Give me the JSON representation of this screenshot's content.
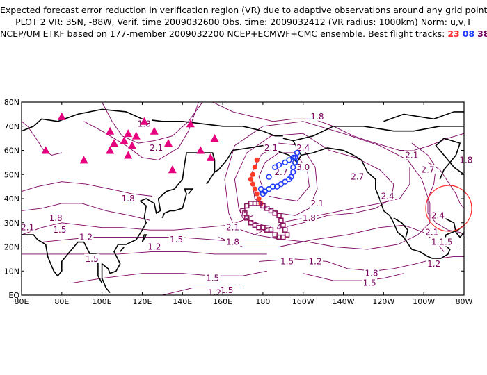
{
  "title": {
    "line1": "Expected forecast error reduction in verification region (VR) due to adaptive observations around any grid point.",
    "line2": "PLOT 2 VR: 35N, -88W, Verif. time 2009032600 Obs. time: 2009032412 (VR radius: 1000km) Norm: u,v,T",
    "line3_prefix": "NCEP/UM ETKF based on 177-member 2009032200 NCEP+ECMWF+CMC ensemble. Best flight tracks:",
    "track_a": "23",
    "track_b": "08",
    "track_c": "38"
  },
  "lat_labels": [
    "80N",
    "70N",
    "60N",
    "50N",
    "40N",
    "30N",
    "20N",
    "10N",
    "EQ"
  ],
  "lon_labels": [
    "80E",
    "80E",
    "100E",
    "120E",
    "140E",
    "160E",
    "180",
    "160W",
    "140W",
    "120W",
    "100W",
    "80W"
  ],
  "contour_labels": [
    {
      "text": "1.8",
      "lon": 28,
      "lat": 72
    },
    {
      "text": "1.8",
      "lon": 121,
      "lat": 71
    },
    {
      "text": "2.1",
      "lon": 127,
      "lat": 61
    },
    {
      "text": "1.8",
      "lon": 113,
      "lat": 40
    },
    {
      "text": "1.8",
      "lon": 77,
      "lat": 32
    },
    {
      "text": "2.1",
      "lon": 63,
      "lat": 28
    },
    {
      "text": "1.5",
      "lon": 79,
      "lat": 27
    },
    {
      "text": "1.2",
      "lon": 92,
      "lat": 24
    },
    {
      "text": "1.5",
      "lon": 95,
      "lat": 15
    },
    {
      "text": "1.5",
      "lon": 137,
      "lat": 23
    },
    {
      "text": "1.2",
      "lon": 126,
      "lat": 20
    },
    {
      "text": "1.5",
      "lon": 155,
      "lat": 7
    },
    {
      "text": "1.5",
      "lon": 162,
      "lat": 2
    },
    {
      "text": "1.2",
      "lon": 156,
      "lat": 1
    },
    {
      "text": "2.1",
      "lon": 165,
      "lat": 28
    },
    {
      "text": "1.8",
      "lon": 165,
      "lat": 22
    },
    {
      "text": "1.8",
      "lon": 207,
      "lat": 74
    },
    {
      "text": "2.1",
      "lon": 184,
      "lat": 61
    },
    {
      "text": "2.4",
      "lon": 200,
      "lat": 61
    },
    {
      "text": "2.7",
      "lon": 189,
      "lat": 51
    },
    {
      "text": "3.0",
      "lon": 200,
      "lat": 53
    },
    {
      "text": "2.1",
      "lon": 207,
      "lat": 38
    },
    {
      "text": "1.8",
      "lon": 203,
      "lat": 32
    },
    {
      "text": "2.7",
      "lon": 227,
      "lat": 49
    },
    {
      "text": "2.4",
      "lon": 242,
      "lat": 41
    },
    {
      "text": "2.1",
      "lon": 254,
      "lat": 58
    },
    {
      "text": "2.7",
      "lon": 262,
      "lat": 52
    },
    {
      "text": "2.4",
      "lon": 267,
      "lat": 33
    },
    {
      "text": "2.1",
      "lon": 264,
      "lat": 26
    },
    {
      "text": "1.8",
      "lon": 267,
      "lat": 22
    },
    {
      "text": "1.5",
      "lon": 271,
      "lat": 22
    },
    {
      "text": "1.8",
      "lon": 234,
      "lat": 9
    },
    {
      "text": "1.5",
      "lon": 233,
      "lat": 5
    },
    {
      "text": "1.2",
      "lon": 265,
      "lat": 13
    },
    {
      "text": "1.5",
      "lon": 192,
      "lat": 14
    },
    {
      "text": "1.2",
      "lon": 206,
      "lat": 14
    },
    {
      "text": "1.8",
      "lon": 281,
      "lat": 56
    },
    {
      "text": "4",
      "lon": 188,
      "lat": 28
    }
  ],
  "colors": {
    "contour": "#7a0060",
    "triangles": "#e6007e",
    "track_red": "#ff3b2a",
    "track_blue": "#1f3cff",
    "track_purple": "#8a1560",
    "vr_circle": "#ff2a2a",
    "coast": "#000000"
  }
}
